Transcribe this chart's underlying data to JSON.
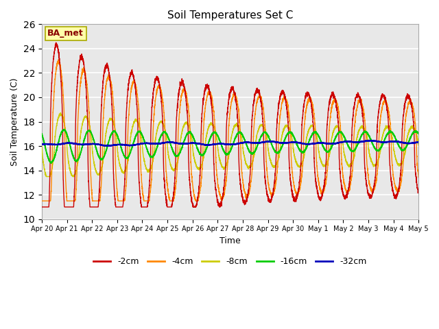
{
  "title": "Soil Temperatures Set C",
  "xlabel": "Time",
  "ylabel": "Soil Temperature (C)",
  "ylim": [
    10,
    26
  ],
  "yticks": [
    10,
    12,
    14,
    16,
    18,
    20,
    22,
    24,
    26
  ],
  "bg_color": "#e8e8e8",
  "annotation_text": "BA_met",
  "annotation_bg": "#ffffaa",
  "annotation_border": "#aaaa00",
  "colors": {
    "-2cm": "#cc0000",
    "-4cm": "#ff8800",
    "-8cm": "#cccc00",
    "-16cm": "#00cc00",
    "-32cm": "#0000bb"
  },
  "legend_labels": [
    "-2cm",
    "-4cm",
    "-8cm",
    "-16cm",
    "-32cm"
  ],
  "date_labels": [
    "Apr 20",
    "Apr 21",
    "Apr 22",
    "Apr 23",
    "Apr 24",
    "Apr 25",
    "Apr 26",
    "Apr 27",
    "Apr 28",
    "Apr 29",
    "Apr 30",
    "May 1",
    "May 2",
    "May 3",
    "May 4",
    "May 5"
  ],
  "n_days": 15,
  "pts_per_day": 288,
  "base_temp": 16.0,
  "figsize": [
    6.4,
    4.8
  ],
  "dpi": 100
}
